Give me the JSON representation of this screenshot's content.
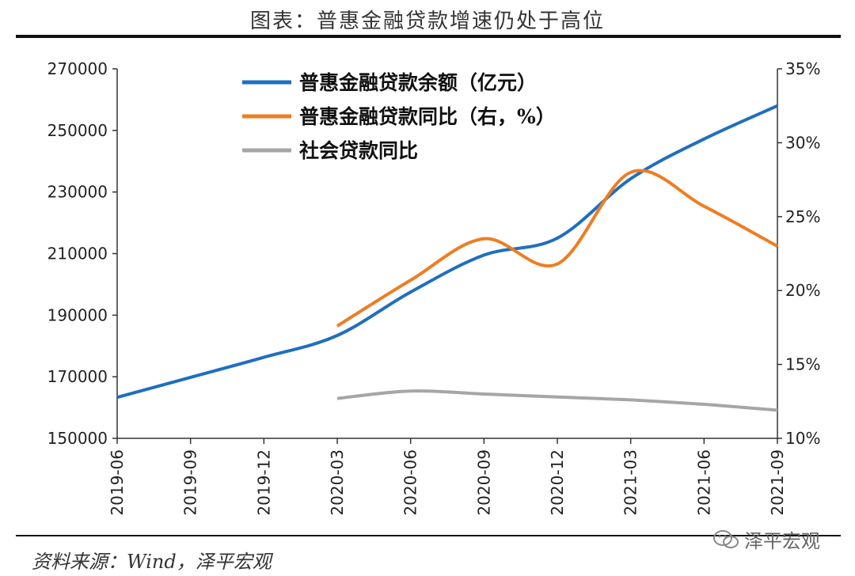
{
  "page": {
    "title": "图表：普惠金融贷款增速仍处于高位",
    "source": "资料来源：Wind，泽平宏观",
    "watermark": "泽平宏观"
  },
  "chart_data": {
    "type": "line",
    "title": "图表：普惠金融贷款增速仍处于高位",
    "categories": [
      "2019-06",
      "2019-09",
      "2019-12",
      "2020-03",
      "2020-06",
      "2020-09",
      "2020-12",
      "2021-03",
      "2021-06",
      "2021-09"
    ],
    "y_left": {
      "ylim": [
        150000,
        270000
      ],
      "ticks": [
        "150000",
        "170000",
        "190000",
        "210000",
        "230000",
        "250000",
        "270000"
      ]
    },
    "y_right": {
      "ylim": [
        10,
        35
      ],
      "ticks": [
        "10%",
        "15%",
        "20%",
        "25%",
        "30%",
        "35%"
      ]
    },
    "series": [
      {
        "name": "普惠金融贷款余额（亿元）",
        "axis": "left",
        "color": "#1f6fbf",
        "values": [
          163300,
          169800,
          176300,
          183400,
          197500,
          209500,
          215000,
          234300,
          247200,
          258000
        ]
      },
      {
        "name": "普惠金融贷款同比（右，%）",
        "axis": "right",
        "color": "#ef7d22",
        "values": [
          null,
          null,
          null,
          17.6,
          20.7,
          23.5,
          21.8,
          28.0,
          25.7,
          23.0
        ]
      },
      {
        "name": "社会贷款同比",
        "axis": "right",
        "color": "#a6a6a6",
        "values": [
          null,
          null,
          null,
          12.7,
          13.2,
          13.0,
          12.8,
          12.6,
          12.3,
          11.9
        ]
      }
    ],
    "legend_position": "top-left",
    "grid": false
  }
}
